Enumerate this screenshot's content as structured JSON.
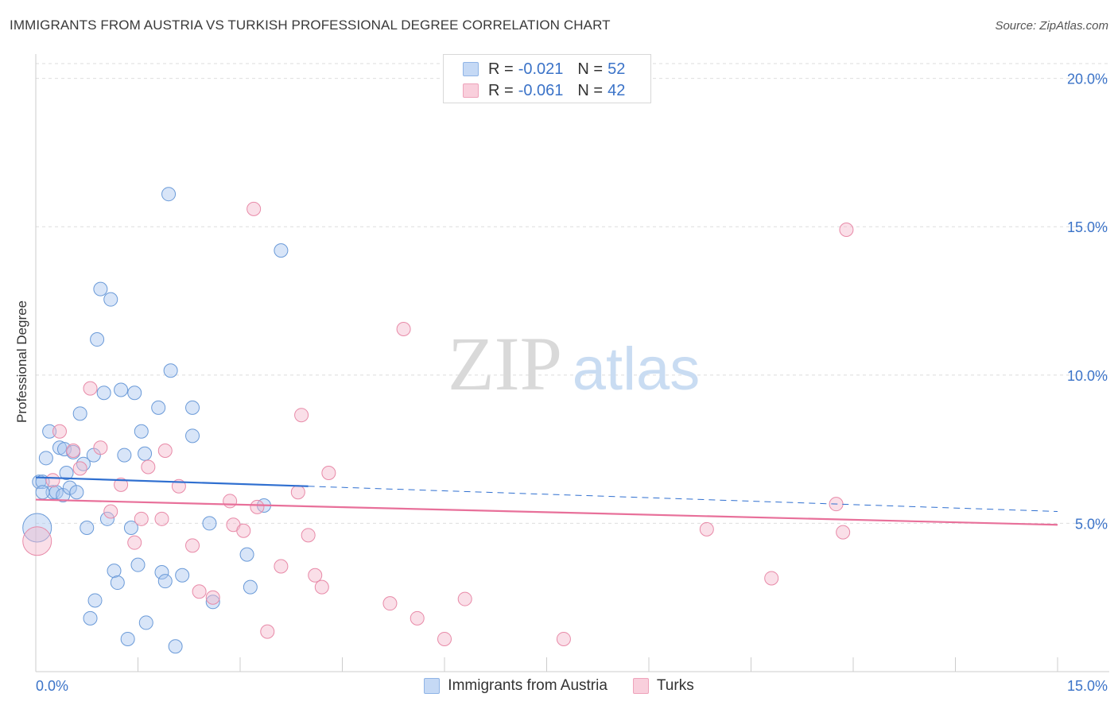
{
  "chart_data": {
    "type": "scatter",
    "title": "IMMIGRANTS FROM AUSTRIA VS TURKISH PROFESSIONAL DEGREE CORRELATION CHART",
    "source": "Source: ZipAtlas.com",
    "ylabel": "Professional Degree",
    "xlabel": "",
    "xlim": [
      0,
      15
    ],
    "ylim": [
      0,
      20.5
    ],
    "x_tick_labels": [
      {
        "value": 0,
        "label": "0.0%"
      },
      {
        "value": 15,
        "label": "15.0%"
      }
    ],
    "y_tick_labels": [
      {
        "value": 5,
        "label": "5.0%"
      },
      {
        "value": 10,
        "label": "10.0%"
      },
      {
        "value": 15,
        "label": "15.0%"
      },
      {
        "value": 20,
        "label": "20.0%"
      }
    ],
    "watermark": {
      "part1": "ZIP",
      "part2": "atlas"
    },
    "legend": [
      {
        "r_label": "R =",
        "r_value": "-0.021",
        "n_label": "N =",
        "n_value": "52"
      },
      {
        "r_label": "R =",
        "r_value": "-0.061",
        "n_label": "N =",
        "n_value": "42"
      }
    ],
    "series": [
      {
        "name": "Immigrants from Austria",
        "color": "#a8c6f0",
        "stroke": "#6a9ad8",
        "trend": {
          "x0": 0,
          "y0": 6.55,
          "x1": 4.0,
          "y1": 6.25,
          "dash_x1": 15.0,
          "dash_y1": 5.4,
          "color": "#2f6fd0"
        },
        "points": [
          [
            0.05,
            6.4
          ],
          [
            0.1,
            6.4
          ],
          [
            0.15,
            7.2
          ],
          [
            0.2,
            8.1
          ],
          [
            0.25,
            6.05
          ],
          [
            0.3,
            6.05
          ],
          [
            0.35,
            7.55
          ],
          [
            0.4,
            5.95
          ],
          [
            0.42,
            7.5
          ],
          [
            0.45,
            6.7
          ],
          [
            0.5,
            6.2
          ],
          [
            0.55,
            7.4
          ],
          [
            0.6,
            6.05
          ],
          [
            0.65,
            8.7
          ],
          [
            0.7,
            7.0
          ],
          [
            0.75,
            4.85
          ],
          [
            0.8,
            1.8
          ],
          [
            0.85,
            7.3
          ],
          [
            0.87,
            2.4
          ],
          [
            0.9,
            11.2
          ],
          [
            0.95,
            12.9
          ],
          [
            1.0,
            9.4
          ],
          [
            1.05,
            5.15
          ],
          [
            1.1,
            12.55
          ],
          [
            1.15,
            3.4
          ],
          [
            1.2,
            3.0
          ],
          [
            1.25,
            9.5
          ],
          [
            1.3,
            7.3
          ],
          [
            1.35,
            1.1
          ],
          [
            1.4,
            4.85
          ],
          [
            1.45,
            9.4
          ],
          [
            1.5,
            3.6
          ],
          [
            1.55,
            8.1
          ],
          [
            1.6,
            7.35
          ],
          [
            1.62,
            1.65
          ],
          [
            1.8,
            8.9
          ],
          [
            1.85,
            3.35
          ],
          [
            1.9,
            3.05
          ],
          [
            1.98,
            10.15
          ],
          [
            1.95,
            16.1
          ],
          [
            2.05,
            0.85
          ],
          [
            2.15,
            3.25
          ],
          [
            2.3,
            8.9
          ],
          [
            2.3,
            7.95
          ],
          [
            2.55,
            5.0
          ],
          [
            2.6,
            2.35
          ],
          [
            3.1,
            3.95
          ],
          [
            3.15,
            2.85
          ],
          [
            3.35,
            5.6
          ],
          [
            3.6,
            14.2
          ],
          [
            0.02,
            4.85
          ],
          [
            0.1,
            6.05
          ]
        ]
      },
      {
        "name": "Turks",
        "color": "#f5b8cb",
        "stroke": "#e88aa8",
        "trend": {
          "x0": 0,
          "y0": 5.8,
          "x1": 15.0,
          "y1": 4.95,
          "color": "#e8709a"
        },
        "points": [
          [
            0.02,
            4.4
          ],
          [
            0.25,
            6.45
          ],
          [
            0.35,
            8.1
          ],
          [
            0.55,
            7.45
          ],
          [
            0.65,
            6.85
          ],
          [
            0.8,
            9.55
          ],
          [
            0.95,
            7.55
          ],
          [
            1.1,
            5.4
          ],
          [
            1.25,
            6.3
          ],
          [
            1.45,
            4.35
          ],
          [
            1.55,
            5.15
          ],
          [
            1.65,
            6.9
          ],
          [
            1.85,
            5.15
          ],
          [
            1.9,
            7.45
          ],
          [
            2.1,
            6.25
          ],
          [
            2.3,
            4.25
          ],
          [
            2.4,
            2.7
          ],
          [
            2.6,
            2.5
          ],
          [
            2.85,
            5.75
          ],
          [
            2.9,
            4.95
          ],
          [
            3.05,
            4.75
          ],
          [
            3.2,
            15.6
          ],
          [
            3.25,
            5.55
          ],
          [
            3.4,
            1.35
          ],
          [
            3.6,
            3.55
          ],
          [
            3.85,
            6.05
          ],
          [
            3.9,
            8.65
          ],
          [
            4.0,
            4.6
          ],
          [
            4.1,
            3.25
          ],
          [
            4.2,
            2.85
          ],
          [
            4.3,
            6.7
          ],
          [
            5.2,
            2.3
          ],
          [
            5.4,
            11.55
          ],
          [
            5.6,
            1.8
          ],
          [
            6.0,
            1.1
          ],
          [
            6.3,
            2.45
          ],
          [
            7.75,
            1.1
          ],
          [
            9.85,
            4.8
          ],
          [
            10.8,
            3.15
          ],
          [
            11.75,
            5.65
          ],
          [
            11.85,
            4.7
          ],
          [
            11.9,
            14.9
          ]
        ]
      }
    ]
  }
}
